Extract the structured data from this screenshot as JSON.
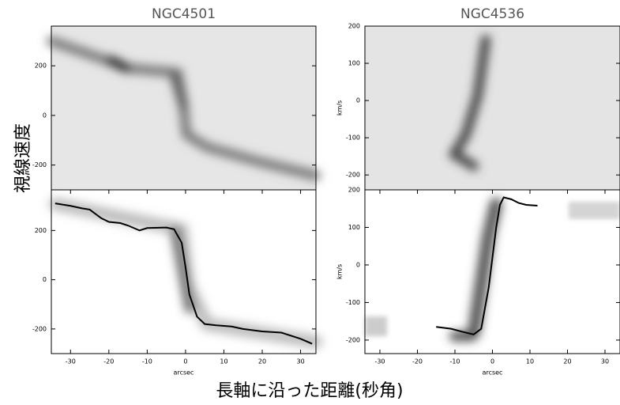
{
  "figure": {
    "ylabel": "視線速度",
    "xlabel": "長軸に沿った距離(秒角)"
  },
  "chart_data": [
    {
      "type": "image",
      "title": "NGC4501",
      "ylim": [
        -300,
        360
      ],
      "yticks": [
        -200,
        0,
        200
      ]
    },
    {
      "type": "line",
      "xlabel": "arcsec",
      "xlim": [
        -35,
        34
      ],
      "xticks": [
        -30,
        -20,
        -10,
        0,
        10,
        20,
        30
      ],
      "ylim": [
        -300,
        365
      ],
      "yticks": [
        -200,
        0,
        200
      ],
      "color": "#000000",
      "x": [
        -34,
        -30,
        -27,
        -25,
        -22,
        -20,
        -17,
        -15,
        -12,
        -10,
        -5,
        -3,
        -1,
        0,
        1,
        3,
        5,
        8,
        12,
        15,
        20,
        25,
        30,
        33
      ],
      "values": [
        310,
        300,
        290,
        285,
        250,
        235,
        230,
        220,
        200,
        210,
        212,
        205,
        150,
        50,
        -60,
        -150,
        -180,
        -185,
        -190,
        -200,
        -210,
        -215,
        -240,
        -260
      ]
    },
    {
      "type": "image",
      "title": "NGC4536",
      "ylabel": "km/s",
      "ylim": [
        -240,
        200
      ],
      "yticks": [
        -200,
        -100,
        0,
        100,
        200
      ]
    },
    {
      "type": "line",
      "xlabel": "arcsec",
      "ylabel": "km/s",
      "xlim": [
        -34,
        34
      ],
      "xticks": [
        -30,
        -20,
        -10,
        0,
        10,
        20,
        30
      ],
      "ylim": [
        -236,
        200
      ],
      "yticks": [
        -200,
        -100,
        0,
        100,
        200
      ],
      "color": "#000000",
      "x": [
        -15,
        -11,
        -8,
        -5,
        -3,
        -1,
        0,
        1,
        2,
        3,
        5,
        7,
        9,
        12
      ],
      "values": [
        -165,
        -170,
        -178,
        -185,
        -170,
        -60,
        20,
        100,
        160,
        180,
        175,
        165,
        160,
        158
      ]
    }
  ]
}
